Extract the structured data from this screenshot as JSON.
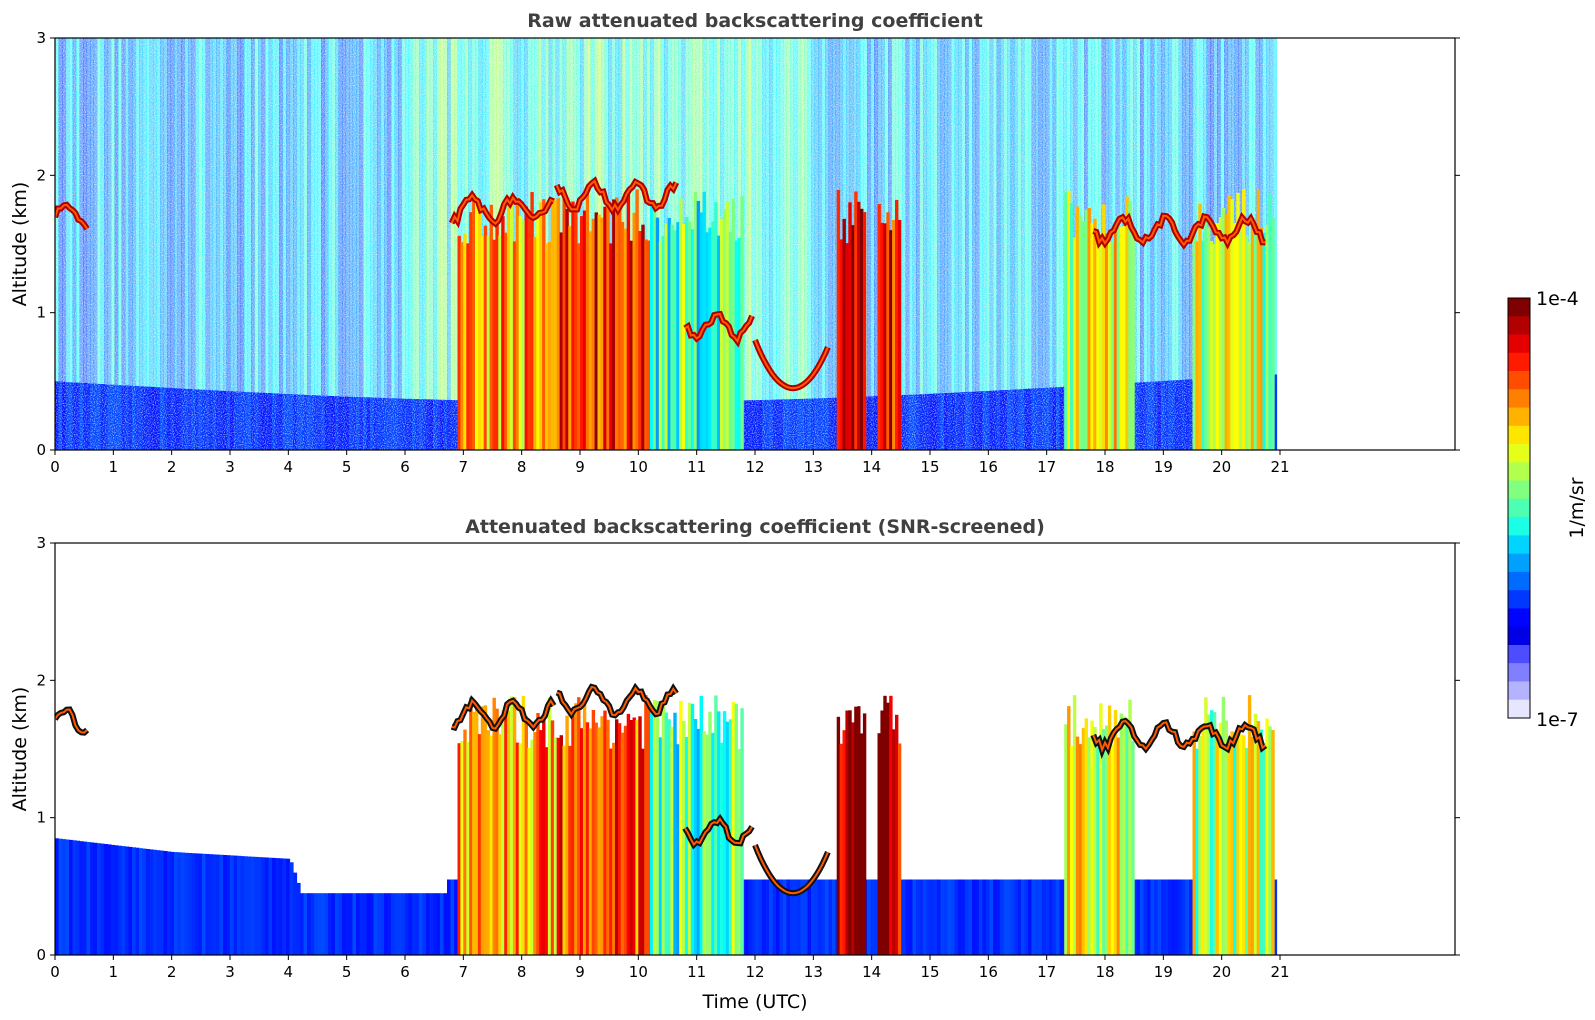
{
  "colorbar": {
    "top_label": "1e-4",
    "bottom_label": "1e-7",
    "unit_label": "1/m/sr",
    "colormap": "jet",
    "levels": [
      "#7f0000",
      "#b20000",
      "#e50000",
      "#ff1a00",
      "#ff4d00",
      "#ff8000",
      "#ffb300",
      "#ffe600",
      "#e6ff1a",
      "#b3ff4d",
      "#80ff80",
      "#4dffb3",
      "#1affe6",
      "#00d4ff",
      "#00a0ff",
      "#006cff",
      "#0038ff",
      "#0004ff",
      "#0000e6",
      "#4d4dff",
      "#8080ff",
      "#b3b3ff",
      "#e6e6ff"
    ]
  },
  "chart_data": [
    {
      "type": "heatmap",
      "title": "Raw attenuated backscattering coefficient",
      "xlabel": "",
      "ylabel": "Altitude (km)",
      "xlim": [
        0,
        24
      ],
      "ylim": [
        0,
        3
      ],
      "x_ticks": [
        "0",
        "1",
        "2",
        "3",
        "4",
        "5",
        "6",
        "7",
        "8",
        "9",
        "10",
        "11",
        "12",
        "13",
        "14",
        "15",
        "16",
        "17",
        "18",
        "19",
        "20",
        "21"
      ],
      "y_ticks": [
        "0",
        "1",
        "2",
        "3"
      ],
      "data_end_time": 20.9,
      "cloud_layers": [
        {
          "start": 0.0,
          "end": 0.55,
          "altitude": 1.7
        },
        {
          "start": 6.8,
          "end": 8.6,
          "altitude": 1.75
        },
        {
          "start": 8.6,
          "end": 10.7,
          "altitude": 1.85
        },
        {
          "start": 10.8,
          "end": 12.0,
          "altitude": 0.9
        },
        {
          "start": 12.0,
          "end": 13.3,
          "altitude": 0.45
        },
        {
          "start": 17.8,
          "end": 20.8,
          "altitude": 1.6
        }
      ],
      "precipitation_columns": [
        {
          "start": 6.9,
          "end": 8.6,
          "level": 0.72
        },
        {
          "start": 8.6,
          "end": 10.2,
          "level": 0.82
        },
        {
          "start": 10.2,
          "end": 11.8,
          "level": 0.45
        },
        {
          "start": 13.4,
          "end": 13.9,
          "level": 0.95
        },
        {
          "start": 14.1,
          "end": 14.5,
          "level": 0.9
        },
        {
          "start": 17.3,
          "end": 18.5,
          "level": 0.6
        },
        {
          "start": 19.5,
          "end": 20.9,
          "level": 0.55
        }
      ]
    },
    {
      "type": "heatmap",
      "title": "Attenuated backscattering coefficient (SNR-screened)",
      "xlabel": "Time (UTC)",
      "ylabel": "Altitude (km)",
      "xlim": [
        0,
        24
      ],
      "ylim": [
        0,
        3
      ],
      "x_ticks": [
        "0",
        "1",
        "2",
        "3",
        "4",
        "5",
        "6",
        "7",
        "8",
        "9",
        "10",
        "11",
        "12",
        "13",
        "14",
        "15",
        "16",
        "17",
        "18",
        "19",
        "20",
        "21"
      ],
      "y_ticks": [
        "0",
        "1",
        "2",
        "3"
      ],
      "data_end_time": 20.9,
      "boundary_layer_top": [
        {
          "time": 0.0,
          "altitude": 0.85
        },
        {
          "time": 2.0,
          "altitude": 0.75
        },
        {
          "time": 4.0,
          "altitude": 0.7
        },
        {
          "time": 4.2,
          "altitude": 0.45
        },
        {
          "time": 6.7,
          "altitude": 0.45
        }
      ]
    }
  ]
}
